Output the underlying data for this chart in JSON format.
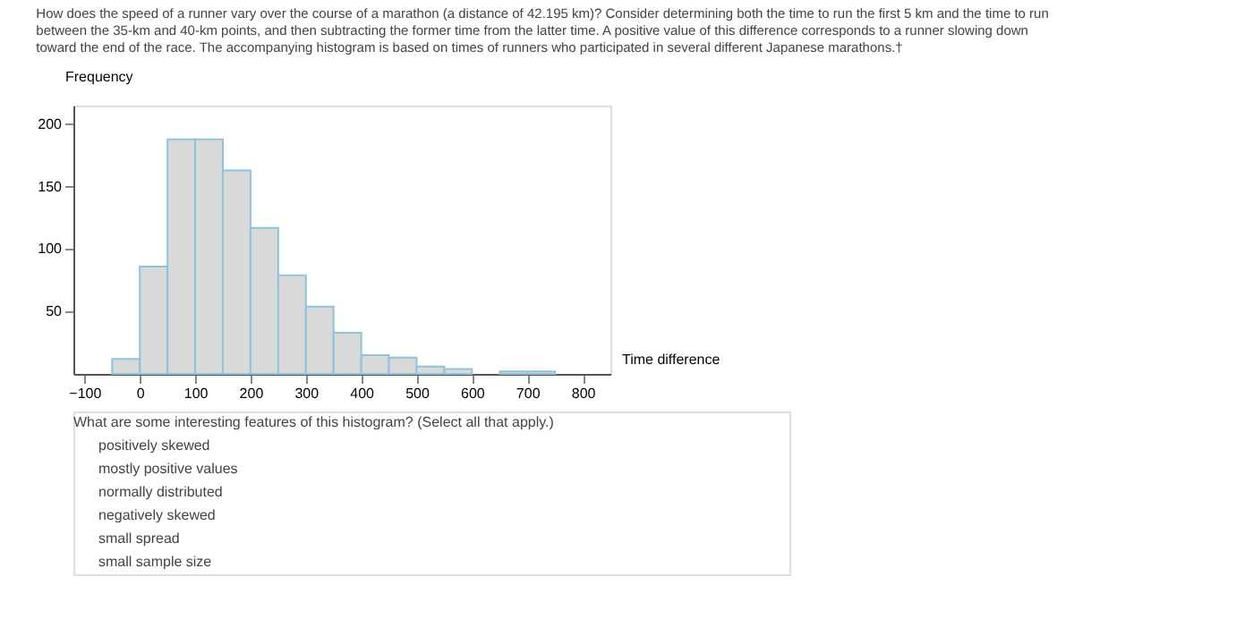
{
  "chart_data": {
    "type": "histogram",
    "title": "How does the speed of a runner vary over the course of a marathon (a distance of 42.195 km)? Consider determining both the time to run the first 5 km and the time to run between the 35-km and 40-km points, and then subtracting the former time from the latter time. A positive value of this difference corresponds to a runner slowing down toward the end of the race. The accompanying histogram is based on times of runners who participated in several different Japanese marathons.†",
    "xlabel": "Time difference",
    "ylabel": "Frequency",
    "bins": [
      -50,
      0,
      50,
      100,
      150,
      200,
      250,
      300,
      350,
      400,
      450,
      500,
      550,
      600,
      650,
      700,
      750
    ],
    "values": [
      12,
      86,
      188,
      188,
      163,
      117,
      79,
      54,
      33,
      15,
      13,
      6,
      4,
      null,
      2,
      2
    ],
    "color": "#d9d9d9",
    "xlim": [
      -120,
      850
    ],
    "xticks": [
      -100,
      0,
      100,
      200,
      300,
      400,
      500,
      600,
      700,
      800
    ],
    "ylim": [
      0,
      215
    ],
    "yticks": [
      50,
      100,
      150,
      200
    ],
    "grid": false,
    "legend": false,
    "annotations": [
      "What are some interesting features of this histogram? (Select all that apply.)",
      "positively skewed",
      "mostly positive values",
      "normally distributed",
      "negatively skewed",
      "small spread",
      "small sample size"
    ]
  }
}
